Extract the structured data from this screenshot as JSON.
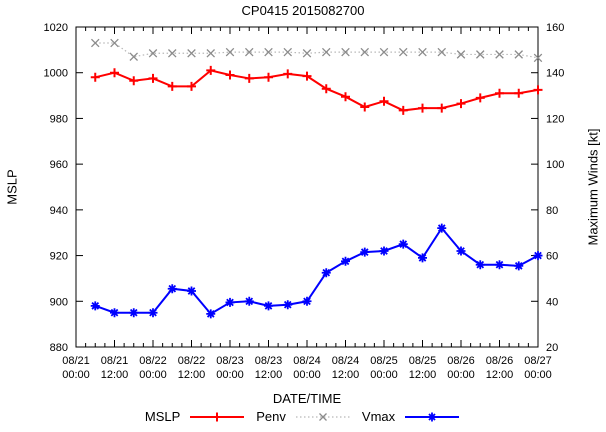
{
  "title": "CP0415 2015082700",
  "axes": {
    "x_label": "DATE/TIME",
    "left_label": "MSLP",
    "right_label": "Maximum Winds [kt]"
  },
  "colors": {
    "mslp": "#ff0000",
    "penv_line": "#b8b8b8",
    "penv_marker": "#8c8c8c",
    "vmax": "#0000ff",
    "frame": "#000000"
  },
  "chart_data": {
    "type": "line",
    "title": "CP0415 2015082700",
    "xlabel": "DATE/TIME",
    "ylabel_left": "MSLP",
    "ylabel_right": "Maximum Winds [kt]",
    "ylim_left": [
      880,
      1020
    ],
    "ylim_right": [
      20,
      160
    ],
    "ytick_step": 20,
    "x_range_hours": [
      0,
      144
    ],
    "x_major_tick_hours": 12,
    "x_minor_tick_hours": 3,
    "grid": false,
    "legend_position": "bottom",
    "x_tick_labels": [
      "08/21 00:00",
      "08/21 12:00",
      "08/22 00:00",
      "08/22 12:00",
      "08/23 00:00",
      "08/23 12:00",
      "08/24 00:00",
      "08/24 12:00",
      "08/25 00:00",
      "08/25 12:00",
      "08/26 00:00",
      "08/26 12:00",
      "08/27 00:00"
    ],
    "x_hours": [
      6,
      12,
      18,
      24,
      30,
      36,
      42,
      48,
      54,
      60,
      66,
      72,
      78,
      84,
      90,
      96,
      102,
      108,
      114,
      120,
      126,
      132,
      138,
      144
    ],
    "series": [
      {
        "name": "MSLP",
        "axis": "left",
        "color": "#ff0000",
        "line": "solid",
        "marker": "plus",
        "values": [
          998,
          1000,
          996.5,
          997.5,
          994,
          994,
          1001,
          999,
          997.5,
          998,
          999.5,
          998.5,
          993,
          989.5,
          985,
          987.5,
          983.5,
          984.5,
          984.5,
          986.5,
          989,
          991,
          991,
          992.5
        ]
      },
      {
        "name": "Penv",
        "axis": "left",
        "color": "#b8b8b8",
        "line": "dotted",
        "marker": "cross",
        "values": [
          1013,
          1013,
          1007,
          1008.5,
          1008.5,
          1008.5,
          1008.5,
          1009,
          1009,
          1009,
          1009,
          1008.5,
          1009,
          1009,
          1009,
          1009,
          1009,
          1009,
          1009,
          1008,
          1008,
          1008,
          1008,
          1006.5
        ]
      },
      {
        "name": "Vmax",
        "axis": "right",
        "color": "#0000ff",
        "line": "solid",
        "marker": "star",
        "values": [
          38,
          35,
          35,
          35,
          45.5,
          44.5,
          34.5,
          39.5,
          40,
          38,
          38.5,
          40,
          52.5,
          57.5,
          61.5,
          62,
          65,
          59,
          72,
          62,
          56,
          56,
          55.5,
          60
        ]
      }
    ]
  }
}
